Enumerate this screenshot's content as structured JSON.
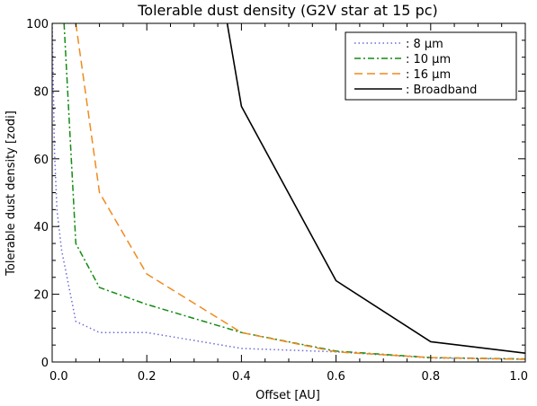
{
  "chart_data": {
    "type": "line",
    "title": "Tolerable dust density (G2V star at 15 pc)",
    "xlabel": "Offset [AU]",
    "ylabel": "Tolerable dust density [zodi]",
    "xlim": [
      0.0,
      1.0
    ],
    "ylim": [
      0,
      100
    ],
    "xticks": [
      "0.0",
      "0.2",
      "0.4",
      "0.6",
      "0.8",
      "1.0"
    ],
    "yticks": [
      "0",
      "20",
      "40",
      "60",
      "80",
      "100"
    ],
    "grid": false,
    "legend_position": "top-right",
    "series": [
      {
        "name": ": 8 μm",
        "color": "#6b6bd6",
        "dash": "dotted",
        "x": [
          0.0,
          0.005,
          0.01,
          0.02,
          0.05,
          0.1,
          0.2,
          0.4,
          0.6,
          0.8,
          1.0
        ],
        "y": [
          100,
          62,
          45,
          33,
          12,
          8.7,
          8.7,
          4.0,
          3.0,
          1.2,
          0.8
        ]
      },
      {
        "name": ": 10 μm",
        "color": "#128c12",
        "dash": "dashdot",
        "x": [
          0.025,
          0.05,
          0.1,
          0.2,
          0.4,
          0.6,
          0.8,
          1.0
        ],
        "y": [
          100,
          35,
          22,
          17,
          8.7,
          3.2,
          1.3,
          0.9
        ]
      },
      {
        "name": ": 16 μm",
        "color": "#f08a1e",
        "dash": "dashed",
        "x": [
          0.05,
          0.1,
          0.2,
          0.4,
          0.6,
          0.8,
          1.0
        ],
        "y": [
          100,
          50,
          26,
          8.7,
          3.0,
          1.3,
          0.8
        ]
      },
      {
        "name": ": Broadband",
        "color": "#000000",
        "dash": "solid",
        "x": [
          0.37,
          0.4,
          0.6,
          0.8,
          1.0
        ],
        "y": [
          100,
          75.5,
          24,
          6.0,
          2.6
        ]
      }
    ]
  }
}
